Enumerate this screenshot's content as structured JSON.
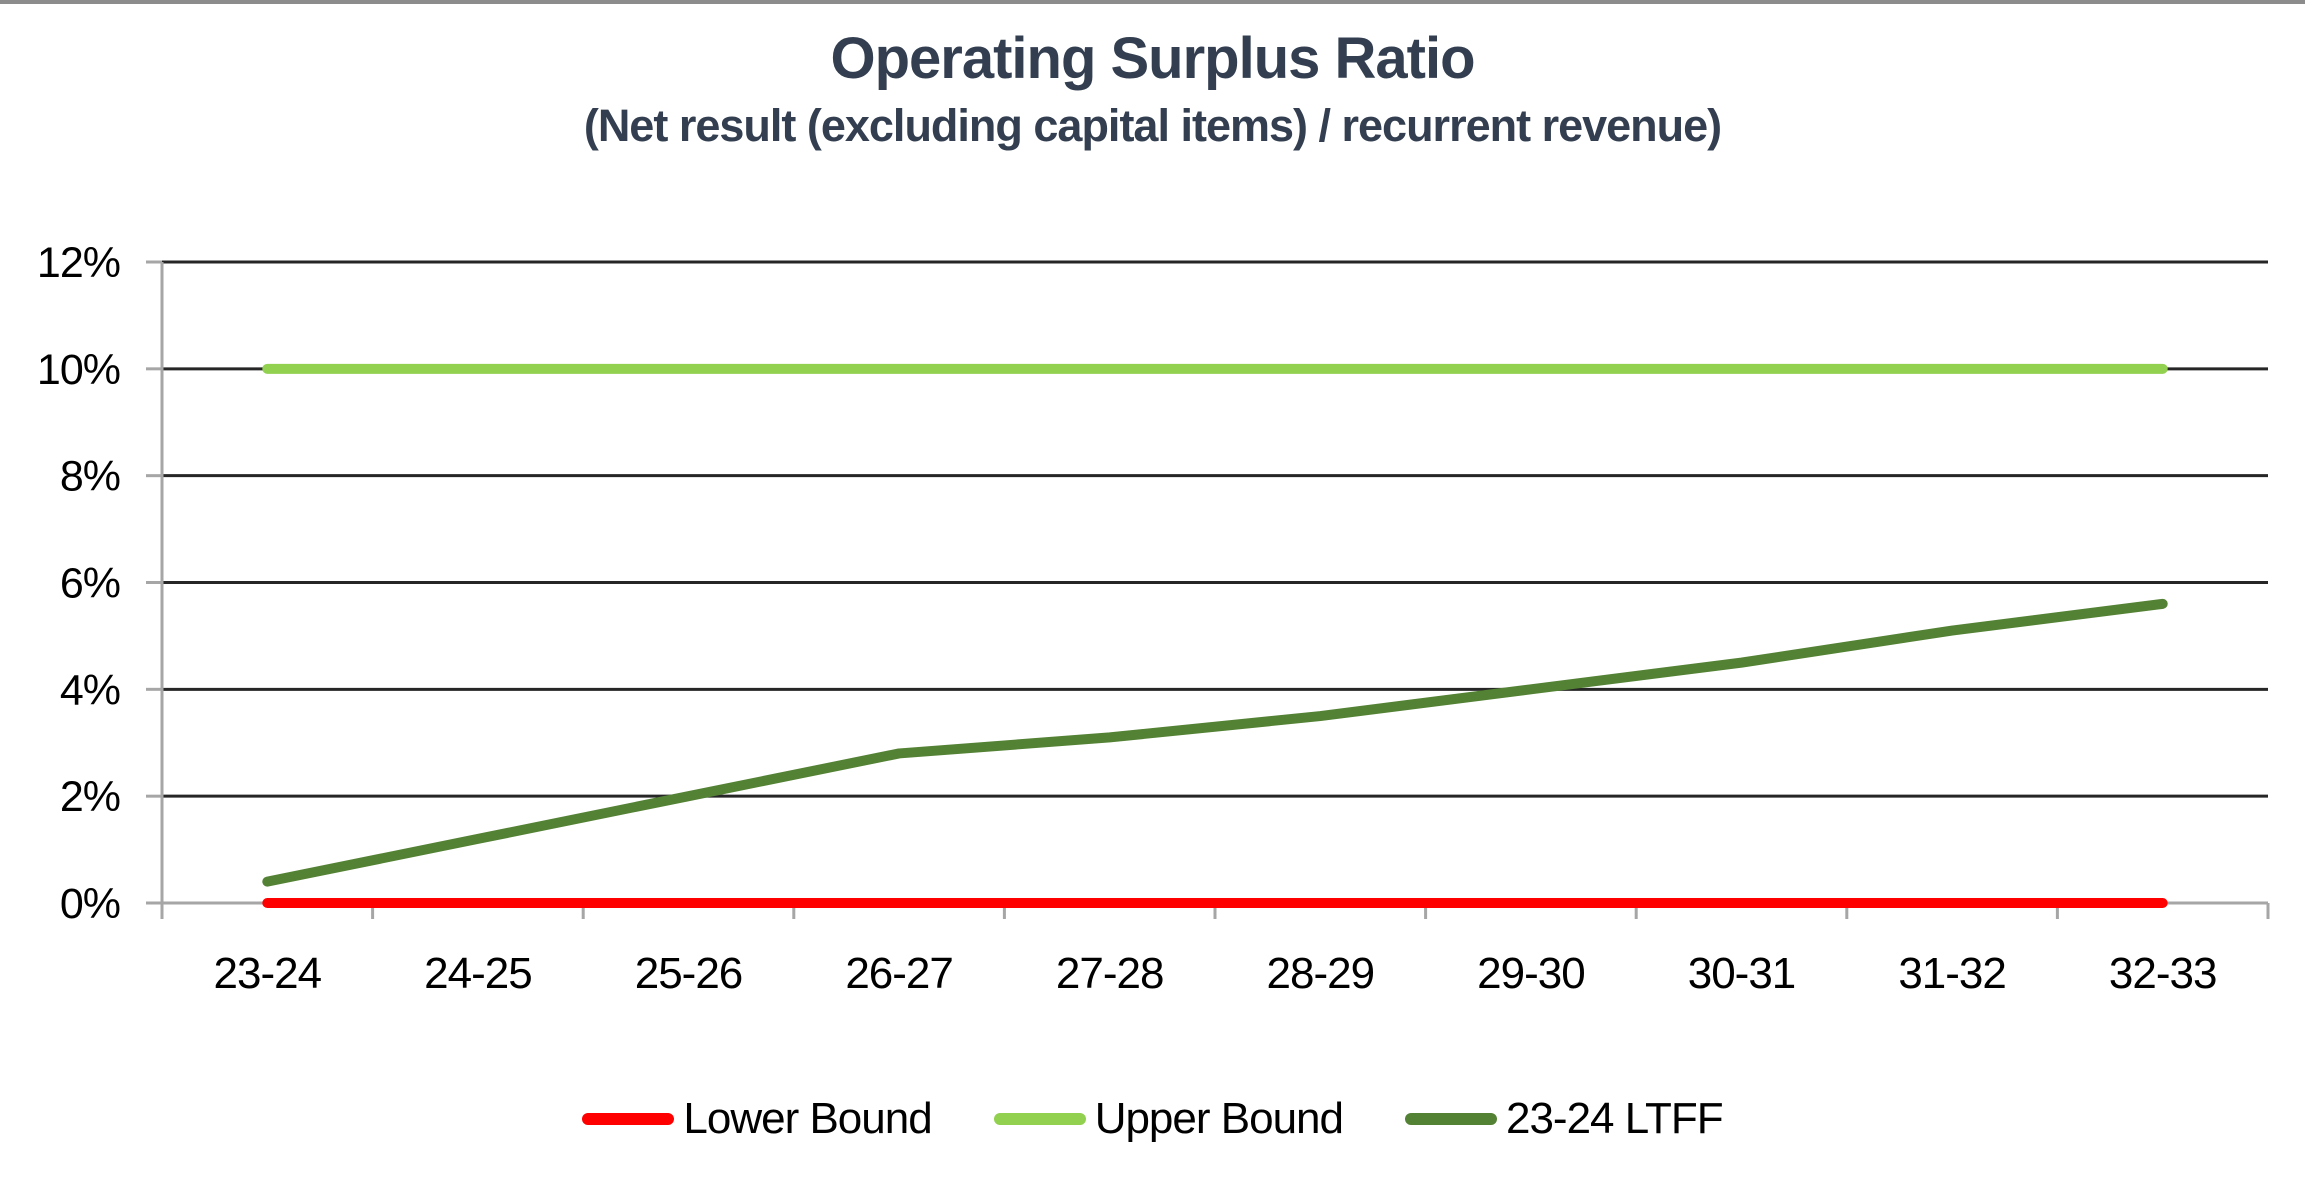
{
  "page": {
    "top_border_color": "#8c8c8c",
    "background_color": "#ffffff"
  },
  "header": {
    "title_color": "#333F50"
  },
  "chart_data": {
    "type": "line",
    "title": "Operating Surplus Ratio",
    "subtitle": "(Net result (excluding capital items) / recurrent revenue)",
    "xlabel": "",
    "ylabel": "",
    "categories": [
      "23-24",
      "24-25",
      "25-26",
      "26-27",
      "27-28",
      "28-29",
      "29-30",
      "30-31",
      "31-32",
      "32-33"
    ],
    "y_ticks": [
      {
        "label": "0%",
        "value": 0
      },
      {
        "label": "2%",
        "value": 2
      },
      {
        "label": "4%",
        "value": 4
      },
      {
        "label": "6%",
        "value": 6
      },
      {
        "label": "8%",
        "value": 8
      },
      {
        "label": "10%",
        "value": 10
      },
      {
        "label": "12%",
        "value": 12
      }
    ],
    "ylim": [
      0,
      12
    ],
    "grid": true,
    "legend_position": "bottom",
    "gridline_color": "#262626",
    "axis_color": "#a6a6a6",
    "tick_label_color": "#000000",
    "series": [
      {
        "name": "Lower Bound",
        "color": "#FF0000",
        "values": [
          0,
          0,
          0,
          0,
          0,
          0,
          0,
          0,
          0,
          0
        ]
      },
      {
        "name": "Upper Bound",
        "color": "#92D050",
        "values": [
          10,
          10,
          10,
          10,
          10,
          10,
          10,
          10,
          10,
          10
        ]
      },
      {
        "name": "23-24 LTFF",
        "color": "#548235",
        "values": [
          0.4,
          1.2,
          2.0,
          2.8,
          3.1,
          3.5,
          4.0,
          4.5,
          5.1,
          5.6
        ]
      }
    ]
  }
}
